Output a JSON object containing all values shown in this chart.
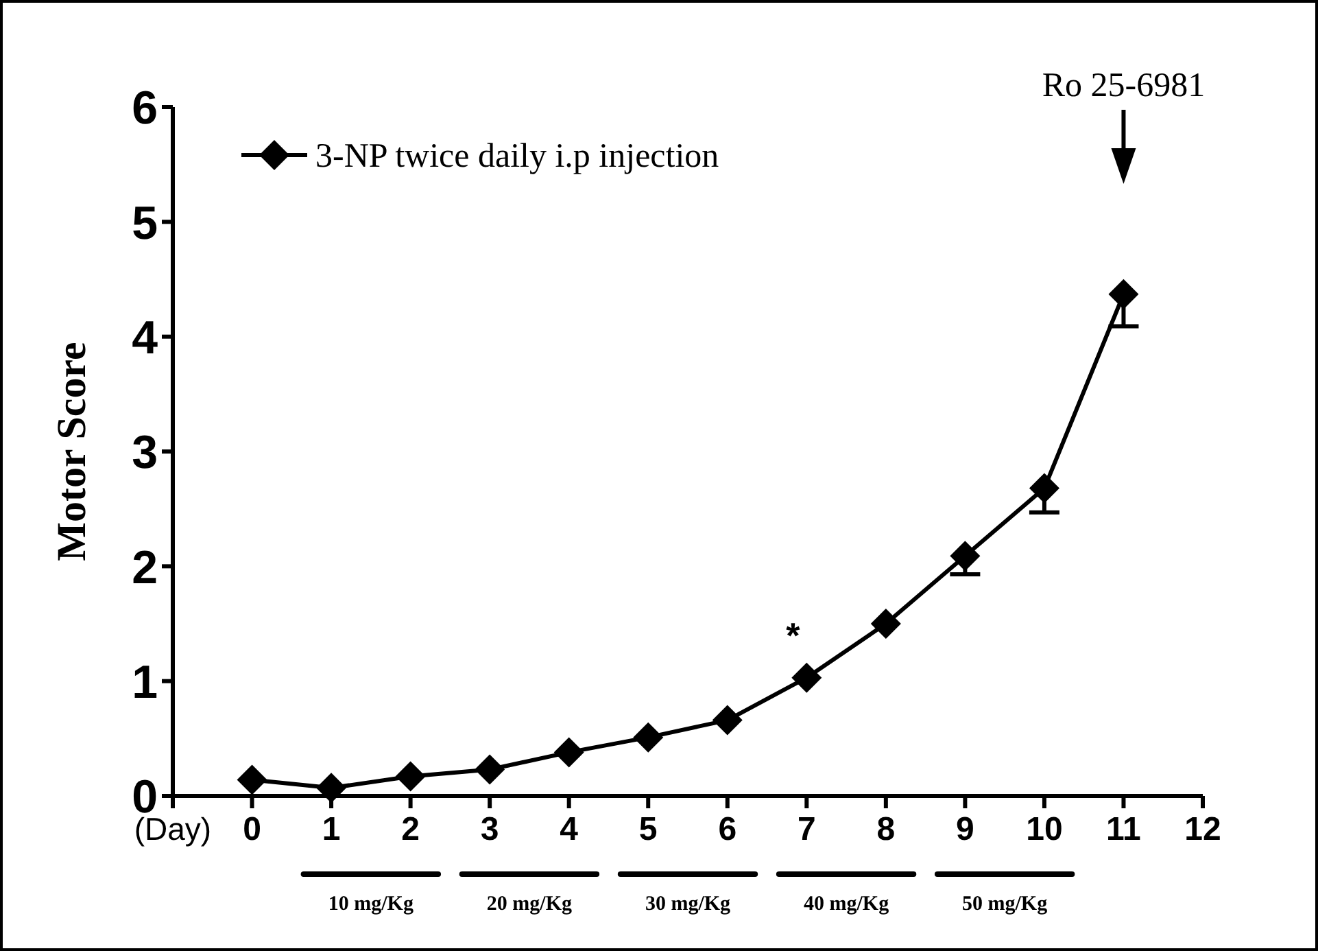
{
  "chart_data": {
    "type": "line",
    "ylabel": "Motor Score",
    "x": [
      0,
      1,
      2,
      3,
      4,
      5,
      6,
      7,
      8,
      9,
      10,
      11
    ],
    "series": [
      {
        "name": "3-NP twice daily i.p injection",
        "color": "#000000",
        "values": [
          0.14,
          0.07,
          0.17,
          0.23,
          0.38,
          0.51,
          0.66,
          1.03,
          1.5,
          2.09,
          2.68,
          4.37
        ],
        "errors": [
          null,
          null,
          null,
          null,
          null,
          null,
          null,
          null,
          null,
          [
            1.93,
            2.09
          ],
          [
            2.47,
            2.68
          ],
          [
            4.09,
            4.37
          ]
        ]
      }
    ],
    "xlim": [
      -1,
      12
    ],
    "xticks": [
      {
        "value": -1,
        "label": "(Day)"
      },
      0,
      1,
      2,
      3,
      4,
      5,
      6,
      7,
      8,
      9,
      10,
      11,
      12
    ],
    "ylim": [
      0,
      6
    ],
    "yticks": [
      0,
      1,
      2,
      3,
      4,
      5,
      6
    ],
    "annotations": [
      {
        "text": "*",
        "x": 7,
        "y": 1.03
      },
      "Ro 25-6981",
      "10 mg/Kg",
      "20 mg/Kg",
      "30 mg/Kg",
      "40 mg/Kg",
      "50 mg/Kg"
    ],
    "legend": "top left",
    "marker": "diamond",
    "line_style": "solid",
    "grid": false
  }
}
